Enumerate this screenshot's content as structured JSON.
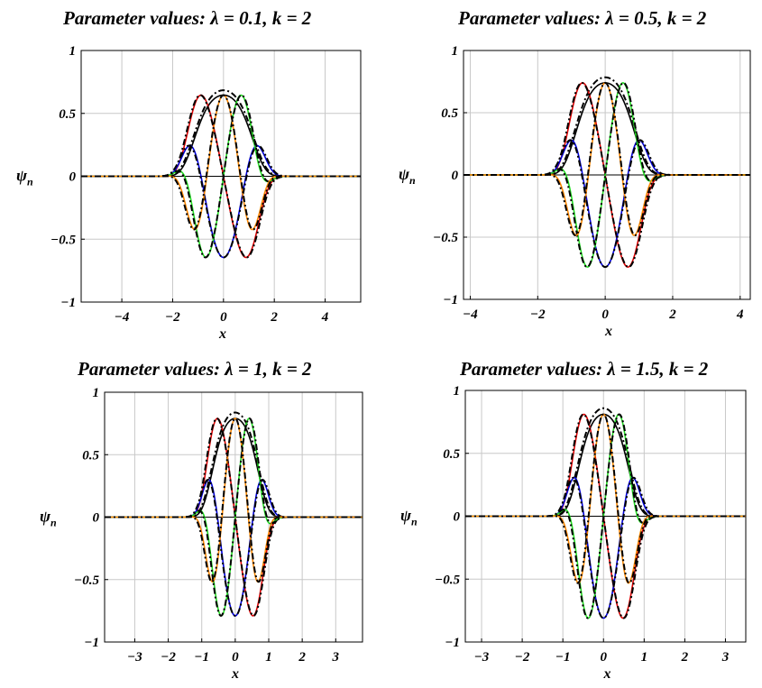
{
  "chart_data": [
    {
      "type": "line",
      "title": "Parameter values:   λ = 0.1, k = 2",
      "xlabel": "x",
      "ylabel": "ψn",
      "ylim": [
        -1,
        1
      ],
      "xlim": [
        -5.6,
        5.4
      ],
      "xticks": [
        -4,
        -2,
        0,
        2,
        4
      ],
      "xtick_labels": [
        "−4",
        "−2",
        "0",
        "2",
        "4"
      ],
      "yticks": [
        -1,
        -0.5,
        0,
        0.5,
        1
      ],
      "ytick_labels": [
        "−1",
        "−0.5",
        "0",
        "0.5",
        "1"
      ],
      "grid": true,
      "lambda": 0.1,
      "k": 2,
      "width": 1.25,
      "amplitude": 0.645,
      "series": [
        {
          "n": 0,
          "color": "#000000",
          "style": "solid"
        },
        {
          "n": 0,
          "color": "#000000",
          "style": "dashdot"
        },
        {
          "n": 1,
          "color": "#dd0000",
          "style": "solid"
        },
        {
          "n": 1,
          "color": "#000000",
          "style": "dashdot"
        },
        {
          "n": 2,
          "color": "#0000dd",
          "style": "solid"
        },
        {
          "n": 2,
          "color": "#000000",
          "style": "dashdot"
        },
        {
          "n": 3,
          "color": "#22dd22",
          "style": "solid"
        },
        {
          "n": 3,
          "color": "#000000",
          "style": "dashdot"
        },
        {
          "n": 4,
          "color": "#ff8800",
          "style": "solid"
        },
        {
          "n": 4,
          "color": "#000000",
          "style": "dashdot"
        }
      ]
    },
    {
      "type": "line",
      "title": "Parameter values:   λ = 0.5, k = 2",
      "xlabel": "x",
      "ylabel": "ψn",
      "ylim": [
        -1,
        1
      ],
      "xlim": [
        -4.2,
        4.3
      ],
      "xticks": [
        -4,
        -2,
        0,
        2,
        4
      ],
      "xtick_labels": [
        "−4",
        "−2",
        "0",
        "2",
        "4"
      ],
      "yticks": [
        -1,
        -0.5,
        0,
        0.5,
        1
      ],
      "ytick_labels": [
        "−1",
        "−0.5",
        "0",
        "0.5",
        "1"
      ],
      "grid": true,
      "lambda": 0.5,
      "k": 2,
      "width": 0.95,
      "amplitude": 0.74,
      "series": [
        {
          "n": 0,
          "color": "#000000",
          "style": "solid"
        },
        {
          "n": 0,
          "color": "#000000",
          "style": "dashdot"
        },
        {
          "n": 1,
          "color": "#dd0000",
          "style": "solid"
        },
        {
          "n": 1,
          "color": "#000000",
          "style": "dashdot"
        },
        {
          "n": 2,
          "color": "#0000dd",
          "style": "solid"
        },
        {
          "n": 2,
          "color": "#000000",
          "style": "dashdot"
        },
        {
          "n": 3,
          "color": "#22dd22",
          "style": "solid"
        },
        {
          "n": 3,
          "color": "#000000",
          "style": "dashdot"
        },
        {
          "n": 4,
          "color": "#ff8800",
          "style": "solid"
        },
        {
          "n": 4,
          "color": "#000000",
          "style": "dashdot"
        }
      ]
    },
    {
      "type": "line",
      "title": "Parameter values:   λ = 1, k = 2",
      "xlabel": "x",
      "ylabel": "ψn",
      "ylim": [
        -1,
        1
      ],
      "xlim": [
        -3.9,
        3.8
      ],
      "xticks": [
        -3,
        -2,
        -1,
        0,
        1,
        2,
        3
      ],
      "xtick_labels": [
        "−3",
        "−2",
        "−1",
        "0",
        "1",
        "2",
        "3"
      ],
      "yticks": [
        -1,
        -0.5,
        0,
        0.5,
        1
      ],
      "ytick_labels": [
        "−1",
        "−0.5",
        "0",
        "0.5",
        "1"
      ],
      "grid": true,
      "lambda": 1,
      "k": 2,
      "width": 0.75,
      "amplitude": 0.79,
      "series": [
        {
          "n": 0,
          "color": "#000000",
          "style": "solid"
        },
        {
          "n": 0,
          "color": "#000000",
          "style": "dashdot"
        },
        {
          "n": 1,
          "color": "#dd0000",
          "style": "solid"
        },
        {
          "n": 1,
          "color": "#000000",
          "style": "dashdot"
        },
        {
          "n": 2,
          "color": "#0000dd",
          "style": "solid"
        },
        {
          "n": 2,
          "color": "#000000",
          "style": "dashdot"
        },
        {
          "n": 3,
          "color": "#22dd22",
          "style": "solid"
        },
        {
          "n": 3,
          "color": "#000000",
          "style": "dashdot"
        },
        {
          "n": 4,
          "color": "#ff8800",
          "style": "solid"
        },
        {
          "n": 4,
          "color": "#000000",
          "style": "dashdot"
        }
      ]
    },
    {
      "type": "line",
      "title": "Parameter values:   λ = 1.5, k = 2",
      "xlabel": "x",
      "ylabel": "ψn",
      "ylim": [
        -1,
        1
      ],
      "xlim": [
        -3.4,
        3.5
      ],
      "xticks": [
        -3,
        -2,
        -1,
        0,
        1,
        2,
        3
      ],
      "xtick_labels": [
        "−3",
        "−2",
        "−1",
        "0",
        "1",
        "2",
        "3"
      ],
      "yticks": [
        -1,
        -0.5,
        0,
        0.5,
        1
      ],
      "ytick_labels": [
        "−1",
        "−0.5",
        "0",
        "0.5",
        "1"
      ],
      "grid": true,
      "lambda": 1.5,
      "k": 2,
      "width": 0.68,
      "amplitude": 0.81,
      "series": [
        {
          "n": 0,
          "color": "#000000",
          "style": "solid"
        },
        {
          "n": 0,
          "color": "#000000",
          "style": "dashdot"
        },
        {
          "n": 1,
          "color": "#dd0000",
          "style": "solid"
        },
        {
          "n": 1,
          "color": "#000000",
          "style": "dashdot"
        },
        {
          "n": 2,
          "color": "#0000dd",
          "style": "solid"
        },
        {
          "n": 2,
          "color": "#000000",
          "style": "dashdot"
        },
        {
          "n": 3,
          "color": "#22dd22",
          "style": "solid"
        },
        {
          "n": 3,
          "color": "#000000",
          "style": "dashdot"
        },
        {
          "n": 4,
          "color": "#ff8800",
          "style": "solid"
        },
        {
          "n": 4,
          "color": "#000000",
          "style": "dashdot"
        }
      ]
    }
  ]
}
